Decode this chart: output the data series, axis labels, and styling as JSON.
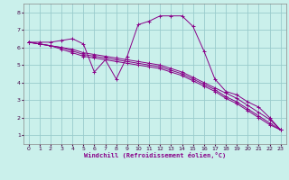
{
  "background_color": "#caf0eb",
  "line_color": "#880088",
  "grid_color": "#99cccc",
  "xlabel": "Windchill (Refroidissement éolien,°C)",
  "xlim": [
    -0.5,
    23.5
  ],
  "ylim": [
    0.5,
    8.5
  ],
  "xticks": [
    0,
    1,
    2,
    3,
    4,
    5,
    6,
    7,
    8,
    9,
    10,
    11,
    12,
    13,
    14,
    15,
    16,
    17,
    18,
    19,
    20,
    21,
    22,
    23
  ],
  "yticks": [
    1,
    2,
    3,
    4,
    5,
    6,
    7,
    8
  ],
  "series": [
    {
      "x": [
        0,
        1,
        2,
        3,
        4,
        5,
        6,
        7,
        8,
        9,
        10,
        11,
        12,
        13,
        14,
        15,
        16,
        17,
        18,
        19,
        20,
        21,
        22,
        23
      ],
      "y": [
        6.3,
        6.2,
        6.1,
        6.0,
        5.9,
        5.7,
        5.6,
        5.5,
        5.4,
        5.3,
        5.2,
        5.1,
        5.0,
        4.8,
        4.6,
        4.3,
        4.0,
        3.7,
        3.4,
        3.1,
        2.7,
        2.3,
        1.9,
        1.3
      ]
    },
    {
      "x": [
        0,
        1,
        2,
        3,
        4,
        5,
        6,
        7,
        8,
        9,
        10,
        11,
        12,
        13,
        14,
        15,
        16,
        17,
        18,
        19,
        20,
        21,
        22,
        23
      ],
      "y": [
        6.3,
        6.2,
        6.1,
        6.0,
        5.8,
        5.6,
        5.5,
        5.4,
        5.3,
        5.2,
        5.1,
        5.0,
        4.9,
        4.7,
        4.5,
        4.2,
        3.9,
        3.6,
        3.2,
        2.9,
        2.5,
        2.1,
        1.7,
        1.3
      ]
    },
    {
      "x": [
        0,
        1,
        2,
        3,
        4,
        5,
        6,
        7,
        8,
        9,
        10,
        11,
        12,
        13,
        14,
        15,
        16,
        17,
        18,
        19,
        20,
        21,
        22,
        23
      ],
      "y": [
        6.3,
        6.2,
        6.1,
        5.9,
        5.7,
        5.5,
        5.4,
        5.3,
        5.2,
        5.1,
        5.0,
        4.9,
        4.8,
        4.6,
        4.4,
        4.1,
        3.8,
        3.5,
        3.1,
        2.8,
        2.4,
        2.0,
        1.6,
        1.3
      ]
    },
    {
      "x": [
        0,
        1,
        2,
        3,
        4,
        5,
        6,
        7,
        8,
        9,
        10,
        11,
        12,
        13,
        14,
        15,
        16,
        17,
        18,
        19,
        20,
        21,
        22,
        23
      ],
      "y": [
        6.3,
        6.3,
        6.3,
        6.4,
        6.5,
        6.2,
        4.6,
        5.3,
        4.2,
        5.5,
        7.3,
        7.5,
        7.8,
        7.8,
        7.8,
        7.2,
        5.8,
        4.2,
        3.5,
        3.3,
        2.9,
        2.6,
        2.0,
        1.3
      ]
    }
  ]
}
